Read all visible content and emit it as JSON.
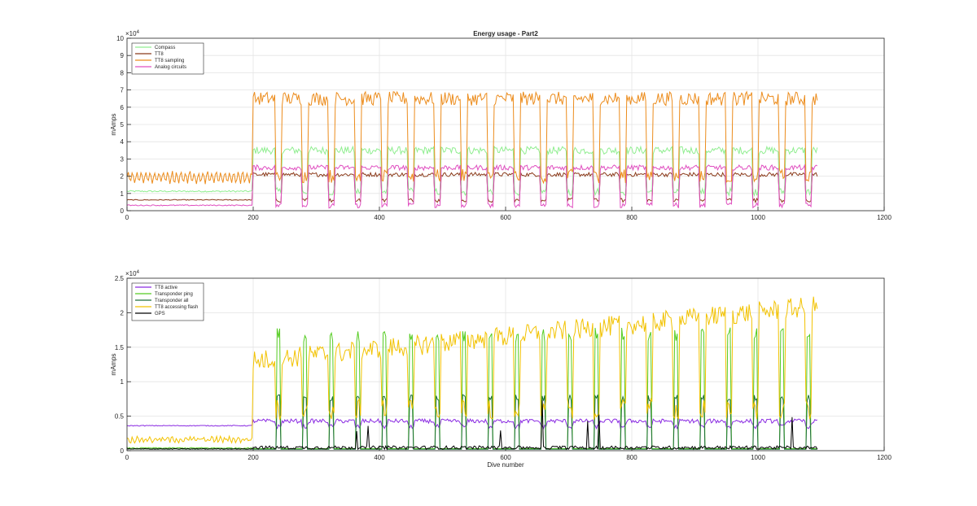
{
  "chart_data": [
    {
      "type": "line",
      "title": "Energy usage - Part2",
      "xlabel": "",
      "ylabel": "mAmps",
      "xlim": [
        0,
        1200
      ],
      "ylim": [
        0,
        100000
      ],
      "x_ticks": [
        "0",
        "200",
        "400",
        "600",
        "800",
        "1000",
        "1200"
      ],
      "y_ticks": [
        "0",
        "1",
        "2",
        "3",
        "4",
        "5",
        "6",
        "7",
        "8",
        "9",
        "10"
      ],
      "y_exponent": "×10",
      "y_exponent_power": "4",
      "grid": true,
      "legend_position": "top-left",
      "series": [
        {
          "name": "Compass",
          "color": "#90ee90",
          "baseline_before_200": 9000,
          "active_level": 35000,
          "low_level": 11000,
          "noise": 2200
        },
        {
          "name": "TT8",
          "color": "#8b3a1a",
          "baseline_before_200": 5000,
          "active_level": 21000,
          "low_level": 6000,
          "noise": 1200
        },
        {
          "name": "TT8 sampling",
          "color": "#ec8c1c",
          "baseline_before_200": 18000,
          "active_level": 65000,
          "low_level": 20000,
          "noise": 4000
        },
        {
          "name": "Analog circuits",
          "color": "#e04fc0",
          "baseline_before_200": 2500,
          "active_level": 25000,
          "low_level": 3000,
          "noise": 1500
        }
      ]
    },
    {
      "type": "line",
      "title": "",
      "xlabel": "Dive number",
      "ylabel": "mAmps",
      "xlim": [
        0,
        1200
      ],
      "ylim": [
        0,
        25000
      ],
      "x_ticks": [
        "0",
        "200",
        "400",
        "600",
        "800",
        "1000",
        "1200"
      ],
      "y_ticks": [
        "0",
        "0.5",
        "1",
        "1.5",
        "2",
        "2.5"
      ],
      "y_exponent": "×10",
      "y_exponent_power": "4",
      "grid": true,
      "legend_position": "top-left",
      "series": [
        {
          "name": "TT8 active",
          "color": "#8a2be2",
          "baseline_before_200": 2900,
          "active_level": 4300,
          "low_level": 3500,
          "noise": 300
        },
        {
          "name": "Transponder ping",
          "color": "#55cc22",
          "baseline_before_200": 300,
          "active_level": 17500,
          "low_level": 300,
          "noise": 400
        },
        {
          "name": "Transponder all",
          "color": "#1f6e3a",
          "baseline_before_200": 200,
          "active_level": 8000,
          "low_level": 200,
          "noise": 300
        },
        {
          "name": "TT8 accessing flash",
          "color": "#f2c200",
          "baseline_before_200": 1500,
          "active_level": 13000,
          "low_level": 6000,
          "noise": 1500
        },
        {
          "name": "GPS",
          "color": "#000000",
          "baseline_before_200": 200,
          "active_level": 400,
          "low_level": 200,
          "noise": 250
        }
      ]
    }
  ]
}
